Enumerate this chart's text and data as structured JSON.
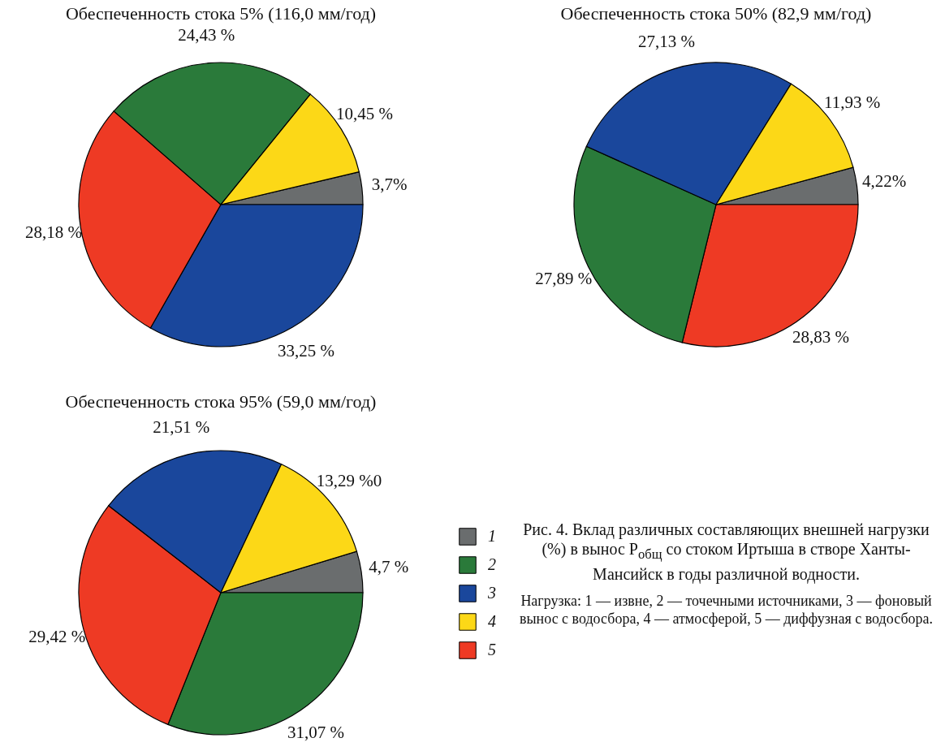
{
  "chart_data": [
    {
      "type": "pie",
      "title": "Обеспеченность стока 5% (116,0 мм/год)",
      "categories": [
        null,
        null,
        null,
        null,
        null
      ],
      "values": [
        3.7,
        33.25,
        28.18,
        24.43,
        10.45
      ],
      "colors": [
        "#6a6d6e",
        "#1a479c",
        "#ee3a24",
        "#2a7a3a",
        "#fcd817"
      ],
      "value_labels": [
        "3,7%",
        "33,25 %",
        "28,18 %",
        "24,43 %",
        "10,45 %"
      ]
    },
    {
      "type": "pie",
      "title": "Обеспеченность стока 50% (82,9 мм/год)",
      "categories": [
        null,
        null,
        null,
        null,
        null
      ],
      "values": [
        4.22,
        28.83,
        27.89,
        27.13,
        11.93
      ],
      "colors": [
        "#6a6d6e",
        "#ee3a24",
        "#2a7a3a",
        "#1a479c",
        "#fcd817"
      ],
      "value_labels": [
        "4,22%",
        "28,83 %",
        "27,89 %",
        "27,13 %",
        "11,93 %"
      ]
    },
    {
      "type": "pie",
      "title": "Обеспеченность стока 95% (59,0 мм/год)",
      "categories": [
        "1",
        "2",
        "5",
        "3",
        "4"
      ],
      "values": [
        4.7,
        31.07,
        29.42,
        21.51,
        13.29
      ],
      "colors": [
        "#6a6d6e",
        "#2a7a3a",
        "#ee3a24",
        "#1a479c",
        "#fcd817"
      ],
      "value_labels": [
        "4,7 %",
        "31,07 %",
        "29,42 %",
        "21,51 %",
        "13,29 %0"
      ],
      "legend": "right",
      "annotations": [
        "Рис. 4. Вклад различных составляющих внешней нагрузки (%) в вынос P$_{общ}$ со стоком Иртыша в створе Ханты-Мансийск в годы различной водности.",
        "Нагрузка: 1 — извне, 2 — точечными источниками, 3 — фоновый вынос с водосбора, 4 — атмосферой, 5 — диффузная с водосбора."
      ]
    }
  ]
}
